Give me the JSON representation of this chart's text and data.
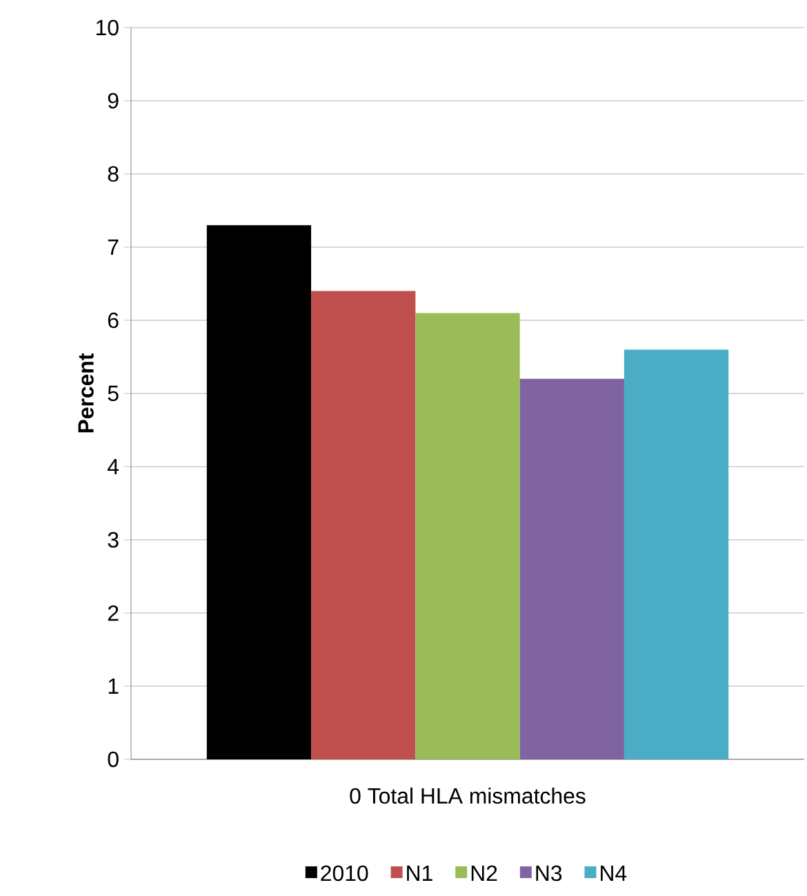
{
  "chart_data": {
    "type": "bar",
    "ylabel": "Percent",
    "categories": [
      "0 Total HLA mismatches"
    ],
    "series": [
      {
        "name": "2010",
        "color": "#000000",
        "values": [
          7.3
        ]
      },
      {
        "name": "N1",
        "color": "#c0504d",
        "values": [
          6.4
        ]
      },
      {
        "name": "N2",
        "color": "#9bbb59",
        "values": [
          6.1
        ]
      },
      {
        "name": "N3",
        "color": "#8064a2",
        "values": [
          5.2
        ]
      },
      {
        "name": "N4",
        "color": "#4bacc6",
        "values": [
          5.6
        ]
      }
    ],
    "ylim": [
      0,
      10
    ],
    "yticks": [
      0,
      1,
      2,
      3,
      4,
      5,
      6,
      7,
      8,
      9,
      10
    ],
    "grid": "y",
    "legend": "bottom"
  }
}
